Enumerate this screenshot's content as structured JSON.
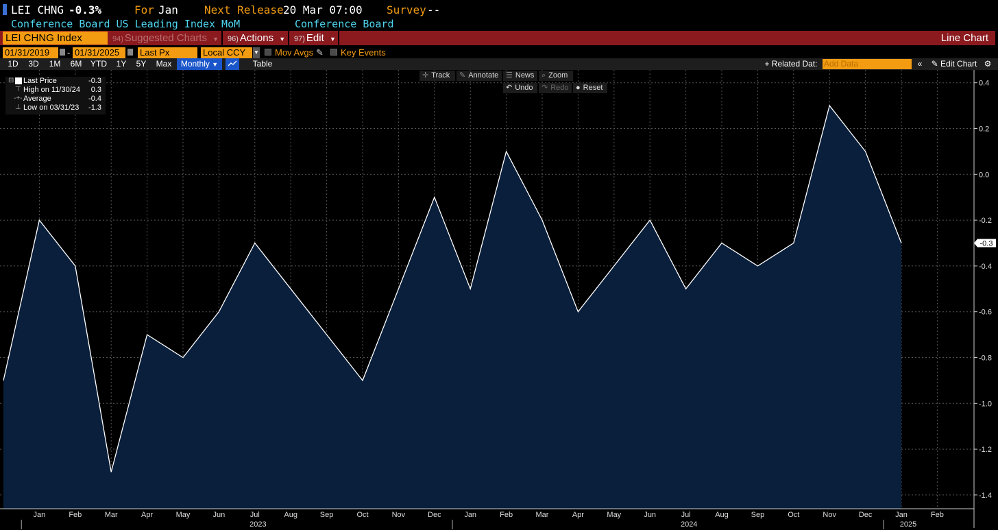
{
  "header": {
    "ticker_short": "LEI CHNG",
    "last_change": "-0.3%",
    "for_label": "For",
    "for_value": "Jan",
    "next_release_label": "Next Release",
    "next_release_value": "20 Mar 07:00",
    "survey_label": "Survey",
    "survey_value": "--",
    "description": "Conference Board US Leading Index MoM",
    "source": "Conference Board"
  },
  "menubar": {
    "ticker": "LEI CHNG Index",
    "suggested_num": "94)",
    "suggested": "Suggested Charts",
    "actions_num": "96)",
    "actions": "Actions",
    "edit_num": "97)",
    "edit": "Edit",
    "chart_type": "Line Chart"
  },
  "controls": {
    "start_date": "01/31/2019",
    "dash": "-",
    "end_date": "01/31/2025",
    "field": "Last Px",
    "currency": "Local CCY",
    "mov_avgs": "Mov Avgs",
    "key_events": "Key Events",
    "periods": [
      "1D",
      "3D",
      "1M",
      "6M",
      "YTD",
      "1Y",
      "5Y",
      "Max"
    ],
    "frequency": "Monthly",
    "table": "Table",
    "related_data": "+ Related Dat:",
    "add_data_placeholder": "Add Data",
    "edit_chart": "Edit Chart"
  },
  "toolbar": {
    "track": "Track",
    "annotate": "Annotate",
    "news": "News",
    "zoom": "Zoom",
    "undo": "Undo",
    "redo": "Redo",
    "reset": "Reset"
  },
  "legend": {
    "items": [
      {
        "label": "Last Price",
        "value": "-0.3"
      },
      {
        "label": "High on 11/30/24",
        "value": "0.3"
      },
      {
        "label": "Average",
        "value": "-0.4"
      },
      {
        "label": "Low on 03/31/23",
        "value": "-1.3"
      }
    ]
  },
  "colors": {
    "line": "#ffffff",
    "fill": "#0a1f3c",
    "accent_orange": "#f39c12",
    "accent_cyan": "#4fd6f0",
    "menubar_red": "#8b1a1f"
  },
  "chart_data": {
    "type": "area",
    "x": [
      "2022-12",
      "2023-01",
      "2023-02",
      "2023-03",
      "2023-04",
      "2023-05",
      "2023-06",
      "2023-07",
      "2023-08",
      "2023-09",
      "2023-10",
      "2023-11",
      "2023-12",
      "2024-01",
      "2024-02",
      "2024-03",
      "2024-04",
      "2024-05",
      "2024-06",
      "2024-07",
      "2024-08",
      "2024-09",
      "2024-10",
      "2024-11",
      "2024-12",
      "2025-01"
    ],
    "series": [
      {
        "values": [
          -0.9,
          -0.2,
          -0.4,
          -1.3,
          -0.7,
          -0.8,
          -0.6,
          -0.3,
          -0.5,
          -0.7,
          -0.9,
          -0.5,
          -0.1,
          -0.5,
          0.1,
          -0.2,
          -0.6,
          -0.4,
          -0.2,
          -0.5,
          -0.3,
          -0.4,
          -0.3,
          0.3,
          0.1,
          -0.3
        ]
      }
    ],
    "x_tick_labels": [
      "Jan",
      "Feb",
      "Mar",
      "Apr",
      "May",
      "Jun",
      "Jul",
      "Aug",
      "Sep",
      "Oct",
      "Nov",
      "Dec",
      "Jan",
      "Feb",
      "Mar",
      "Apr",
      "May",
      "Jun",
      "Jul",
      "Aug",
      "Sep",
      "Oct",
      "Nov",
      "Dec",
      "Jan",
      "Feb"
    ],
    "year_labels": [
      "2023",
      "2024",
      "2025"
    ],
    "y_ticks": [
      0.4,
      0.2,
      0.0,
      -0.2,
      -0.4,
      -0.6,
      -0.8,
      -1.0,
      -1.2,
      -1.4
    ],
    "y_tick_labels": [
      "0.4",
      "0.2",
      "0.0",
      "-0.2",
      "-0.4",
      "-0.6",
      "-0.8",
      "-1.0",
      "-1.2",
      "-1.4"
    ],
    "ylim": [
      -1.45,
      0.45
    ],
    "last_value_label": "-0.3",
    "grid": true,
    "y_axis_side": "right"
  }
}
